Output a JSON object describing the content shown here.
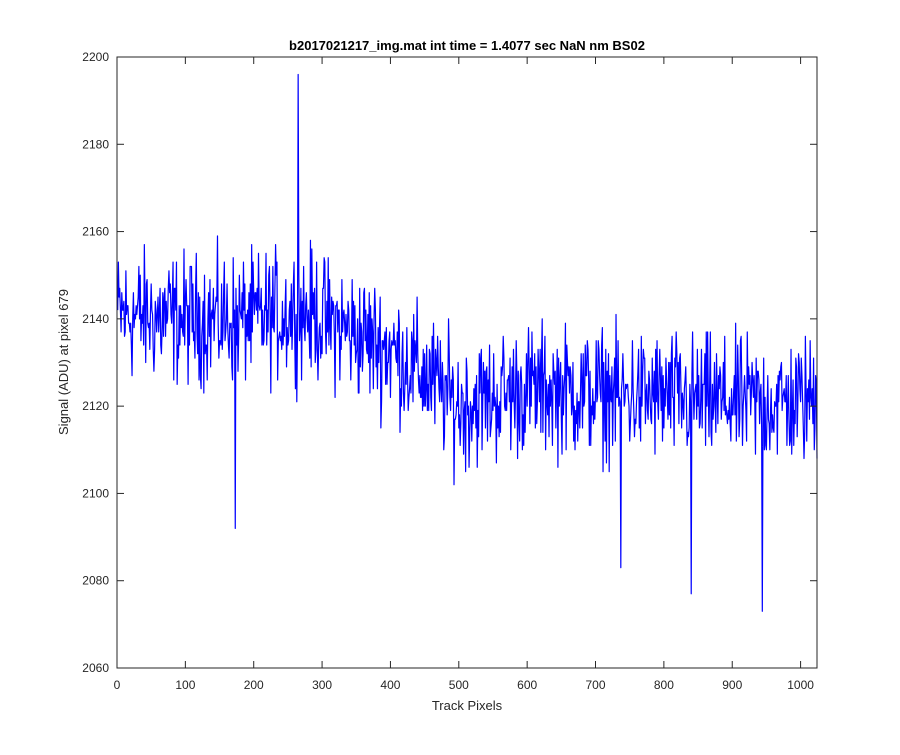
{
  "chart_data": {
    "type": "line",
    "title": "b2017021217_img.mat int time = 1.4077 sec  NaN nm BS02",
    "xlabel": "Track Pixels",
    "ylabel": "Signal (ADU) at pixel 679",
    "xlim": [
      0,
      1024
    ],
    "ylim": [
      2060,
      2200
    ],
    "xticks": [
      0,
      100,
      200,
      300,
      400,
      500,
      600,
      700,
      800,
      900,
      1000
    ],
    "yticks": [
      2060,
      2080,
      2100,
      2120,
      2140,
      2160,
      2180,
      2200
    ],
    "grid": false,
    "legend": "none",
    "series": [
      {
        "color": "#0000ff",
        "x_start": 1,
        "x_step": 1,
        "notable_points": [
          {
            "x": 265,
            "y": 2196
          },
          {
            "x": 173,
            "y": 2092
          },
          {
            "x": 737,
            "y": 2083
          },
          {
            "x": 840,
            "y": 2077
          },
          {
            "x": 944,
            "y": 2073
          }
        ],
        "trend": [
          {
            "x": 0,
            "y": 2141
          },
          {
            "x": 100,
            "y": 2140
          },
          {
            "x": 200,
            "y": 2140
          },
          {
            "x": 270,
            "y": 2142
          },
          {
            "x": 300,
            "y": 2140
          },
          {
            "x": 400,
            "y": 2133
          },
          {
            "x": 450,
            "y": 2127
          },
          {
            "x": 500,
            "y": 2120
          },
          {
            "x": 600,
            "y": 2124
          },
          {
            "x": 700,
            "y": 2123
          },
          {
            "x": 800,
            "y": 2122
          },
          {
            "x": 900,
            "y": 2121
          },
          {
            "x": 1000,
            "y": 2121
          },
          {
            "x": 1024,
            "y": 2122
          }
        ],
        "noise_amplitude": 16,
        "y_min": 2073,
        "y_max": 2196
      }
    ]
  },
  "colors": {
    "axes": "#262626",
    "line": "#0000ff",
    "background": "#ffffff"
  }
}
